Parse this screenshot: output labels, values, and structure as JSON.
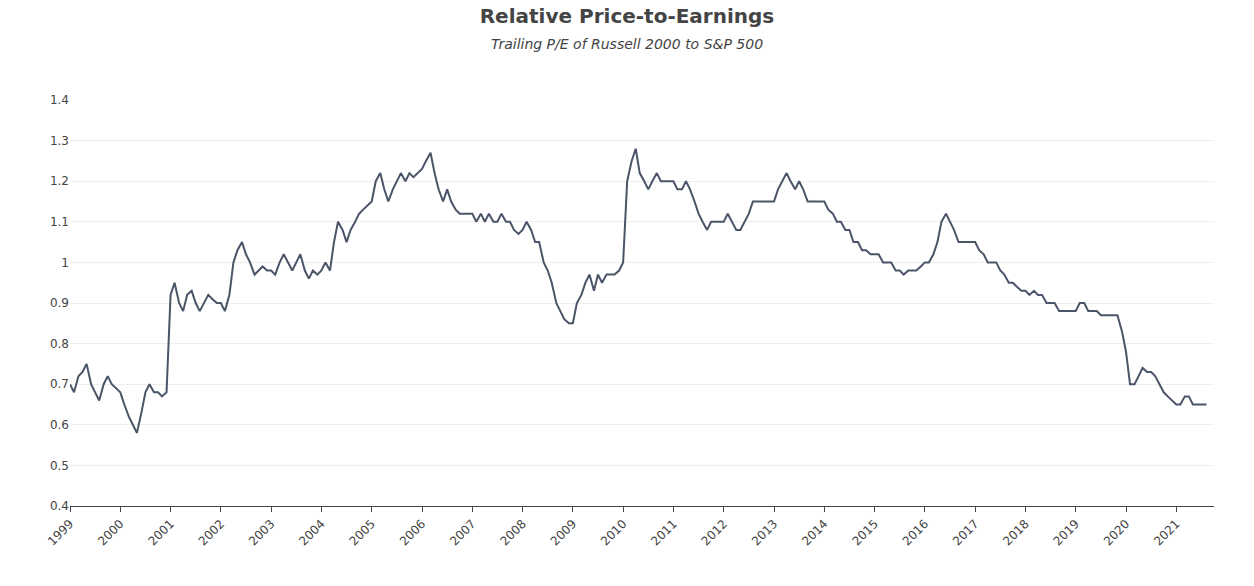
{
  "chart_data": {
    "type": "line",
    "title": "Relative Price-to-Earnings",
    "subtitle": "Trailing P/E of Russell 2000 to S&P 500",
    "color": "#4a5568",
    "grid": true,
    "xlim": [
      1999.0,
      2021.75
    ],
    "xticks": [
      1999,
      2000,
      2001,
      2002,
      2003,
      2004,
      2005,
      2006,
      2007,
      2008,
      2009,
      2010,
      2011,
      2012,
      2013,
      2014,
      2015,
      2016,
      2017,
      2018,
      2019,
      2020,
      2021
    ],
    "ylim": [
      0.4,
      1.4
    ],
    "yticks": [
      0.4,
      0.5,
      0.6,
      0.7,
      0.8,
      0.9,
      1.0,
      1.1,
      1.2,
      1.3,
      1.4
    ],
    "x": [
      1999.0,
      1999.08,
      1999.17,
      1999.25,
      1999.33,
      1999.42,
      1999.5,
      1999.58,
      1999.67,
      1999.75,
      1999.83,
      1999.92,
      2000.0,
      2000.08,
      2000.17,
      2000.25,
      2000.33,
      2000.42,
      2000.5,
      2000.58,
      2000.67,
      2000.75,
      2000.83,
      2000.92,
      2001.0,
      2001.08,
      2001.17,
      2001.25,
      2001.33,
      2001.42,
      2001.5,
      2001.58,
      2001.67,
      2001.75,
      2001.83,
      2001.92,
      2002.0,
      2002.08,
      2002.17,
      2002.25,
      2002.33,
      2002.42,
      2002.5,
      2002.58,
      2002.67,
      2002.75,
      2002.83,
      2002.92,
      2003.0,
      2003.08,
      2003.17,
      2003.25,
      2003.33,
      2003.42,
      2003.5,
      2003.58,
      2003.67,
      2003.75,
      2003.83,
      2003.92,
      2004.0,
      2004.08,
      2004.17,
      2004.25,
      2004.33,
      2004.42,
      2004.5,
      2004.58,
      2004.67,
      2004.75,
      2004.83,
      2004.92,
      2005.0,
      2005.08,
      2005.17,
      2005.25,
      2005.33,
      2005.42,
      2005.5,
      2005.58,
      2005.67,
      2005.75,
      2005.83,
      2005.92,
      2006.0,
      2006.08,
      2006.17,
      2006.25,
      2006.33,
      2006.42,
      2006.5,
      2006.58,
      2006.67,
      2006.75,
      2006.83,
      2006.92,
      2007.0,
      2007.08,
      2007.17,
      2007.25,
      2007.33,
      2007.42,
      2007.5,
      2007.58,
      2007.67,
      2007.75,
      2007.83,
      2007.92,
      2008.0,
      2008.08,
      2008.17,
      2008.25,
      2008.33,
      2008.42,
      2008.5,
      2008.58,
      2008.67,
      2008.75,
      2008.83,
      2008.92,
      2009.0,
      2009.08,
      2009.17,
      2009.25,
      2009.33,
      2009.42,
      2009.5,
      2009.58,
      2009.67,
      2009.75,
      2009.83,
      2009.92,
      2010.0,
      2010.08,
      2010.17,
      2010.25,
      2010.33,
      2010.42,
      2010.5,
      2010.58,
      2010.67,
      2010.75,
      2010.83,
      2010.92,
      2011.0,
      2011.08,
      2011.17,
      2011.25,
      2011.33,
      2011.42,
      2011.5,
      2011.58,
      2011.67,
      2011.75,
      2011.83,
      2011.92,
      2012.0,
      2012.08,
      2012.17,
      2012.25,
      2012.33,
      2012.42,
      2012.5,
      2012.58,
      2012.67,
      2012.75,
      2012.83,
      2012.92,
      2013.0,
      2013.08,
      2013.17,
      2013.25,
      2013.33,
      2013.42,
      2013.5,
      2013.58,
      2013.67,
      2013.75,
      2013.83,
      2013.92,
      2014.0,
      2014.08,
      2014.17,
      2014.25,
      2014.33,
      2014.42,
      2014.5,
      2014.58,
      2014.67,
      2014.75,
      2014.83,
      2014.92,
      2015.0,
      2015.08,
      2015.17,
      2015.25,
      2015.33,
      2015.42,
      2015.5,
      2015.58,
      2015.67,
      2015.75,
      2015.83,
      2015.92,
      2016.0,
      2016.08,
      2016.17,
      2016.25,
      2016.33,
      2016.42,
      2016.5,
      2016.58,
      2016.67,
      2016.75,
      2016.83,
      2016.92,
      2017.0,
      2017.08,
      2017.17,
      2017.25,
      2017.33,
      2017.42,
      2017.5,
      2017.58,
      2017.67,
      2017.75,
      2017.83,
      2017.92,
      2018.0,
      2018.08,
      2018.17,
      2018.25,
      2018.33,
      2018.42,
      2018.5,
      2018.58,
      2018.67,
      2018.75,
      2018.83,
      2018.92,
      2019.0,
      2019.08,
      2019.17,
      2019.25,
      2019.33,
      2019.42,
      2019.5,
      2019.58,
      2019.67,
      2019.75,
      2019.83,
      2019.92,
      2020.0,
      2020.08,
      2020.17,
      2020.25,
      2020.33,
      2020.42,
      2020.5,
      2020.58,
      2020.67,
      2020.75,
      2020.83,
      2020.92,
      2021.0,
      2021.08,
      2021.17,
      2021.25,
      2021.33,
      2021.5,
      2021.6
    ],
    "values": [
      0.7,
      0.68,
      0.72,
      0.73,
      0.75,
      0.7,
      0.68,
      0.66,
      0.7,
      0.72,
      0.7,
      0.69,
      0.68,
      0.65,
      0.62,
      0.6,
      0.58,
      0.63,
      0.68,
      0.7,
      0.68,
      0.68,
      0.67,
      0.68,
      0.92,
      0.95,
      0.9,
      0.88,
      0.92,
      0.93,
      0.9,
      0.88,
      0.9,
      0.92,
      0.91,
      0.9,
      0.9,
      0.88,
      0.92,
      1.0,
      1.03,
      1.05,
      1.02,
      1.0,
      0.97,
      0.98,
      0.99,
      0.98,
      0.98,
      0.97,
      1.0,
      1.02,
      1.0,
      0.98,
      1.0,
      1.02,
      0.98,
      0.96,
      0.98,
      0.97,
      0.98,
      1.0,
      0.98,
      1.05,
      1.1,
      1.08,
      1.05,
      1.08,
      1.1,
      1.12,
      1.13,
      1.14,
      1.15,
      1.2,
      1.22,
      1.18,
      1.15,
      1.18,
      1.2,
      1.22,
      1.2,
      1.22,
      1.21,
      1.22,
      1.23,
      1.25,
      1.27,
      1.22,
      1.18,
      1.15,
      1.18,
      1.15,
      1.13,
      1.12,
      1.12,
      1.12,
      1.12,
      1.1,
      1.12,
      1.1,
      1.12,
      1.1,
      1.1,
      1.12,
      1.1,
      1.1,
      1.08,
      1.07,
      1.08,
      1.1,
      1.08,
      1.05,
      1.05,
      1.0,
      0.98,
      0.95,
      0.9,
      0.88,
      0.86,
      0.85,
      0.85,
      0.9,
      0.92,
      0.95,
      0.97,
      0.93,
      0.97,
      0.95,
      0.97,
      0.97,
      0.97,
      0.98,
      1.0,
      1.2,
      1.25,
      1.28,
      1.22,
      1.2,
      1.18,
      1.2,
      1.22,
      1.2,
      1.2,
      1.2,
      1.2,
      1.18,
      1.18,
      1.2,
      1.18,
      1.15,
      1.12,
      1.1,
      1.08,
      1.1,
      1.1,
      1.1,
      1.1,
      1.12,
      1.1,
      1.08,
      1.08,
      1.1,
      1.12,
      1.15,
      1.15,
      1.15,
      1.15,
      1.15,
      1.15,
      1.18,
      1.2,
      1.22,
      1.2,
      1.18,
      1.2,
      1.18,
      1.15,
      1.15,
      1.15,
      1.15,
      1.15,
      1.13,
      1.12,
      1.1,
      1.1,
      1.08,
      1.08,
      1.05,
      1.05,
      1.03,
      1.03,
      1.02,
      1.02,
      1.02,
      1.0,
      1.0,
      1.0,
      0.98,
      0.98,
      0.97,
      0.98,
      0.98,
      0.98,
      0.99,
      1.0,
      1.0,
      1.02,
      1.05,
      1.1,
      1.12,
      1.1,
      1.08,
      1.05,
      1.05,
      1.05,
      1.05,
      1.05,
      1.03,
      1.02,
      1.0,
      1.0,
      1.0,
      0.98,
      0.97,
      0.95,
      0.95,
      0.94,
      0.93,
      0.93,
      0.92,
      0.93,
      0.92,
      0.92,
      0.9,
      0.9,
      0.9,
      0.88,
      0.88,
      0.88,
      0.88,
      0.88,
      0.9,
      0.9,
      0.88,
      0.88,
      0.88,
      0.87,
      0.87,
      0.87,
      0.87,
      0.87,
      0.83,
      0.78,
      0.7,
      0.7,
      0.72,
      0.74,
      0.73,
      0.73,
      0.72,
      0.7,
      0.68,
      0.67,
      0.66,
      0.65,
      0.65,
      0.67,
      0.67,
      0.65,
      0.65,
      0.65
    ]
  }
}
